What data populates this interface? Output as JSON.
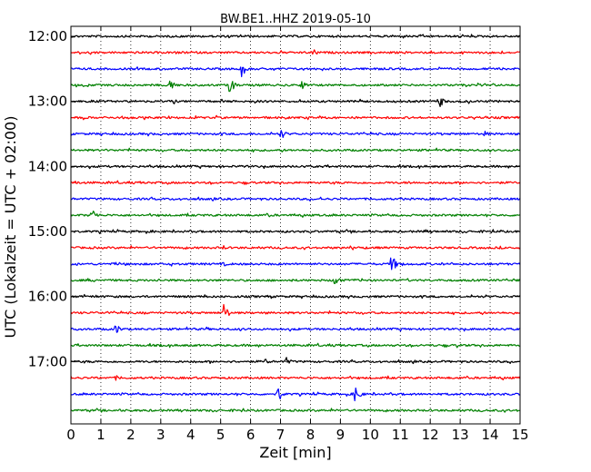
{
  "chart_data": {
    "type": "line",
    "title": "BW.BE1..HHZ 2019-05-10",
    "xlabel": "Zeit  [min]",
    "ylabel": "UTC (Lokalzeit = UTC + 02:00)",
    "xlim": [
      0,
      15
    ],
    "x_ticks": [
      0,
      1,
      2,
      3,
      4,
      5,
      6,
      7,
      8,
      9,
      10,
      11,
      12,
      13,
      14,
      15
    ],
    "y_ticks": [
      "12:00",
      "13:00",
      "14:00",
      "15:00",
      "16:00",
      "17:00"
    ],
    "grid": true,
    "color_cycle": [
      "#000000",
      "#ff0000",
      "#0000ff",
      "#008000"
    ],
    "traces_per_hour": 4,
    "traces": [
      {
        "start": "12:00",
        "color": "#000000",
        "events": []
      },
      {
        "start": "12:15",
        "color": "#ff0000",
        "events": [
          {
            "t": 2.0,
            "amp": 3
          },
          {
            "t": 8.1,
            "amp": 5
          },
          {
            "t": 13.9,
            "amp": 3
          }
        ]
      },
      {
        "start": "12:30",
        "color": "#0000ff",
        "events": [
          {
            "t": 5.7,
            "amp": 9
          }
        ]
      },
      {
        "start": "12:45",
        "color": "#008000",
        "events": [
          {
            "t": 3.3,
            "amp": 9
          },
          {
            "t": 5.3,
            "amp": 11
          },
          {
            "t": 7.7,
            "amp": 6
          }
        ]
      },
      {
        "start": "13:00",
        "color": "#000000",
        "events": [
          {
            "t": 3.4,
            "amp": 4
          },
          {
            "t": 12.3,
            "amp": 8
          }
        ]
      },
      {
        "start": "13:15",
        "color": "#ff0000",
        "events": []
      },
      {
        "start": "13:30",
        "color": "#0000ff",
        "events": [
          {
            "t": 7.0,
            "amp": 7
          },
          {
            "t": 13.8,
            "amp": 4
          }
        ]
      },
      {
        "start": "13:45",
        "color": "#008000",
        "events": []
      },
      {
        "start": "14:00",
        "color": "#000000",
        "events": []
      },
      {
        "start": "14:15",
        "color": "#ff0000",
        "events": [
          {
            "t": 0.1,
            "amp": 4
          },
          {
            "t": 11.3,
            "amp": 3
          }
        ]
      },
      {
        "start": "14:30",
        "color": "#0000ff",
        "events": []
      },
      {
        "start": "14:45",
        "color": "#008000",
        "events": [
          {
            "t": 0.7,
            "amp": 9
          },
          {
            "t": 6.6,
            "amp": 3
          }
        ]
      },
      {
        "start": "15:00",
        "color": "#000000",
        "events": [
          {
            "t": 11.8,
            "amp": 3
          },
          {
            "t": 14.3,
            "amp": 3
          }
        ]
      },
      {
        "start": "15:15",
        "color": "#ff0000",
        "events": [
          {
            "t": 5.1,
            "amp": 3
          }
        ]
      },
      {
        "start": "15:30",
        "color": "#0000ff",
        "events": [
          {
            "t": 10.7,
            "amp": 12
          },
          {
            "t": 5.1,
            "amp": 3
          }
        ]
      },
      {
        "start": "15:45",
        "color": "#008000",
        "events": [
          {
            "t": 8.8,
            "amp": 8
          }
        ]
      },
      {
        "start": "16:00",
        "color": "#000000",
        "events": []
      },
      {
        "start": "16:15",
        "color": "#ff0000",
        "events": [
          {
            "t": 5.1,
            "amp": 11
          }
        ]
      },
      {
        "start": "16:30",
        "color": "#0000ff",
        "events": [
          {
            "t": 1.5,
            "amp": 7
          },
          {
            "t": 4.5,
            "amp": 3
          }
        ]
      },
      {
        "start": "16:45",
        "color": "#008000",
        "events": [
          {
            "t": 12.9,
            "amp": 3
          }
        ]
      },
      {
        "start": "17:00",
        "color": "#000000",
        "events": [
          {
            "t": 7.2,
            "amp": 5
          },
          {
            "t": 6.5,
            "amp": 4
          }
        ]
      },
      {
        "start": "17:15",
        "color": "#ff0000",
        "events": [
          {
            "t": 1.5,
            "amp": 3
          }
        ]
      },
      {
        "start": "17:30",
        "color": "#0000ff",
        "events": [
          {
            "t": 6.9,
            "amp": 10
          },
          {
            "t": 9.5,
            "amp": 11
          }
        ]
      },
      {
        "start": "17:45",
        "color": "#008000",
        "events": []
      }
    ]
  }
}
